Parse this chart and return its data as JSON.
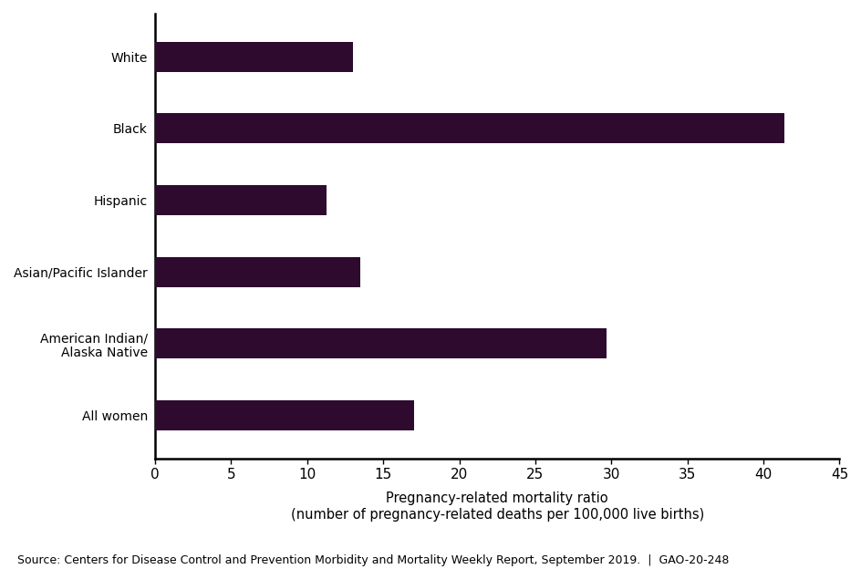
{
  "categories": [
    "White",
    "Black",
    "Hispanic",
    "Asian/Pacific Islander",
    "American Indian/\nAlaska Native",
    "All women"
  ],
  "values": [
    13.0,
    41.4,
    11.3,
    13.5,
    29.7,
    17.0
  ],
  "bar_color": "#2d0a2e",
  "xlim": [
    0,
    45
  ],
  "xticks": [
    0,
    5,
    10,
    15,
    20,
    25,
    30,
    35,
    40,
    45
  ],
  "xlabel_line1": "Pregnancy-related mortality ratio",
  "xlabel_line2": "(number of pregnancy-related deaths per 100,000 live births)",
  "source_text": "Source: Centers for Disease Control and Prevention Morbidity and Mortality Weekly Report, September 2019.  |  GAO-20-248",
  "background_color": "#ffffff",
  "bar_height": 0.42,
  "label_fontsize": 11.5,
  "tick_fontsize": 11,
  "xlabel_fontsize": 10.5,
  "source_fontsize": 9
}
